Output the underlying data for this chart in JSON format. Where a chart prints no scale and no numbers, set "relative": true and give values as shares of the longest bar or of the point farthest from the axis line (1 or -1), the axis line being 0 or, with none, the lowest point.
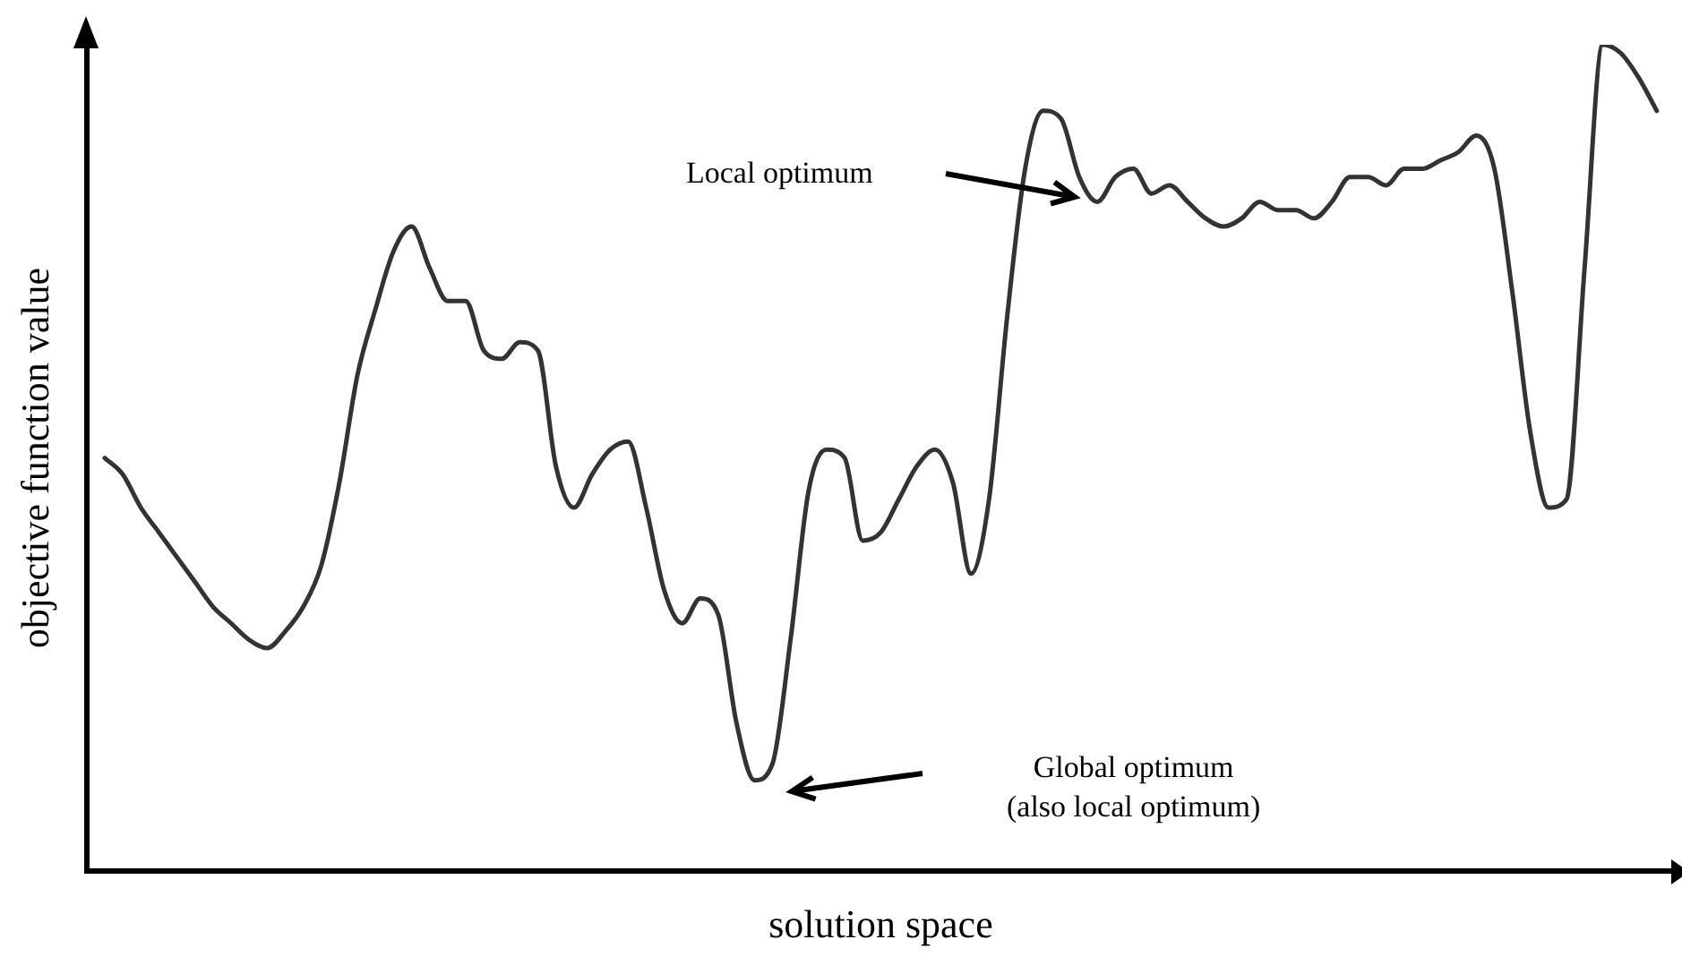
{
  "chart_data": {
    "type": "line",
    "relative": true,
    "xlabel": "solution space",
    "ylabel": "objective function value",
    "categories": [
      null,
      null,
      null,
      null,
      null,
      null,
      null,
      null,
      null,
      null,
      null,
      null,
      null,
      null,
      null,
      null,
      null,
      null,
      null,
      null,
      null,
      null,
      null,
      null,
      null,
      null,
      null,
      null,
      null,
      null,
      null,
      null,
      null,
      null,
      null,
      null,
      null,
      null,
      null,
      null,
      null,
      null,
      null,
      null,
      null,
      null,
      null,
      null,
      null,
      null,
      null,
      null,
      null,
      null,
      null,
      null,
      null,
      null,
      null,
      null,
      null,
      null,
      null,
      null,
      null,
      null,
      null,
      null,
      null,
      null,
      null,
      null,
      null,
      null,
      null,
      null,
      null,
      null,
      null,
      null,
      null,
      null,
      null,
      null,
      null,
      null,
      null,
      null,
      null
    ],
    "series": [
      {
        "color": "#333333",
        "values": [
          null,
          0.5,
          0.48,
          0.44,
          0.41,
          0.38,
          0.35,
          0.32,
          0.3,
          0.28,
          0.27,
          0.29,
          0.32,
          0.37,
          0.47,
          0.6,
          0.68,
          0.75,
          0.78,
          0.73,
          0.69,
          0.69,
          0.63,
          0.62,
          0.64,
          0.63,
          0.49,
          0.44,
          0.48,
          0.51,
          0.52,
          0.44,
          0.34,
          0.3,
          0.33,
          0.31,
          0.18,
          0.11,
          0.13,
          0.28,
          0.46,
          0.51,
          0.5,
          0.4,
          0.41,
          0.45,
          0.49,
          0.51,
          0.47,
          0.36,
          0.45,
          0.67,
          0.85,
          0.92,
          0.91,
          0.84,
          0.81,
          0.84,
          0.85,
          0.82,
          0.83,
          0.81,
          0.79,
          0.78,
          0.79,
          0.81,
          0.8,
          0.8,
          0.79,
          0.81,
          0.84,
          0.84,
          0.83,
          0.85,
          0.85,
          0.86,
          0.87,
          0.89,
          0.85,
          0.7,
          0.53,
          0.44,
          0.45,
          0.73,
          1,
          0.99,
          0.96,
          0.92,
          null
        ]
      }
    ],
    "annotations": [
      "Local optimum",
      "Global optimum\n(also local optimum)"
    ],
    "grid": false,
    "legend": false,
    "marker": "none",
    "line_style": "solid"
  }
}
